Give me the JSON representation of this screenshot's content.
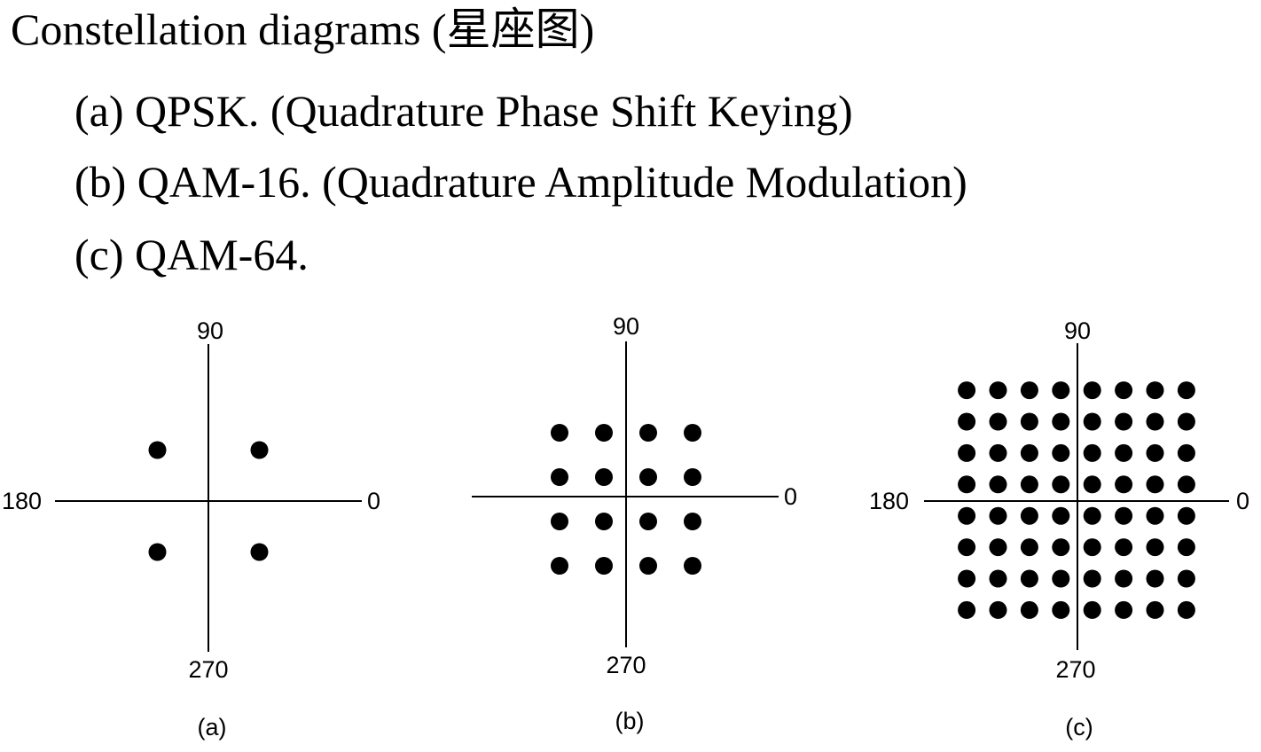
{
  "heading": "Constellation diagrams (星座图)",
  "items": [
    {
      "label": "(a) QPSK. (Quadrature Phase Shift Keying)"
    },
    {
      "label": "(b) QAM-16. (Quadrature Amplitude Modulation)"
    },
    {
      "label": "(c) QAM-64."
    }
  ],
  "diagrams": [
    {
      "caption": "(a)",
      "axis_labels": {
        "top": "90",
        "left": "180",
        "right": "0",
        "bottom": "270"
      },
      "points_per_side": 2,
      "levels": [
        -1,
        1
      ],
      "color": "#000000"
    },
    {
      "caption": "(b)",
      "axis_labels": {
        "top": "90",
        "right": "0",
        "bottom": "270"
      },
      "points_per_side": 4,
      "levels": [
        -3,
        -1,
        1,
        3
      ],
      "color": "#000000"
    },
    {
      "caption": "(c)",
      "axis_labels": {
        "top": "90",
        "left": "180",
        "right": "0",
        "bottom": "270"
      },
      "points_per_side": 8,
      "levels": [
        -7,
        -5,
        -3,
        -1,
        1,
        3,
        5,
        7
      ],
      "color": "#000000"
    }
  ]
}
